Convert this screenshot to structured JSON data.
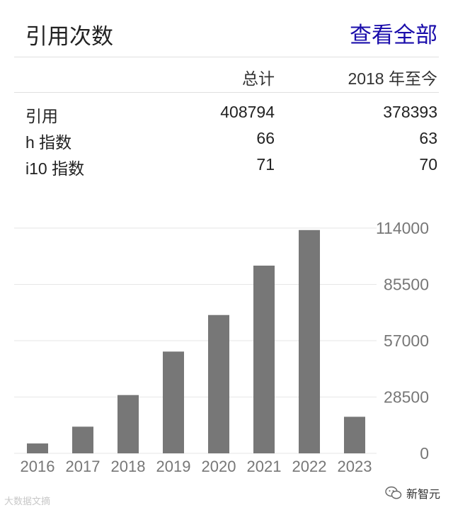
{
  "header": {
    "title": "引用次数",
    "view_all": "查看全部"
  },
  "stats": {
    "columns": [
      "总计",
      "2018 年至今"
    ],
    "rows": [
      {
        "label": "引用",
        "total": "408794",
        "since": "378393"
      },
      {
        "label": "h 指数",
        "total": "66",
        "since": "63"
      },
      {
        "label": "i10 指数",
        "total": "71",
        "since": "70"
      }
    ]
  },
  "chart_data": {
    "type": "bar",
    "categories": [
      "2016",
      "2017",
      "2018",
      "2019",
      "2020",
      "2021",
      "2022",
      "2023"
    ],
    "values": [
      5000,
      13500,
      29500,
      51500,
      70000,
      95000,
      113000,
      18500
    ],
    "ylim": [
      0,
      114000
    ],
    "yticks": [
      "0",
      "28500",
      "57000",
      "85500",
      "114000"
    ],
    "ytick_values": [
      0,
      28500,
      57000,
      85500,
      114000
    ],
    "bar_color": "#777777",
    "grid": true,
    "yaxis_position": "right"
  },
  "footer": {
    "brand": "新智元",
    "watermark": "大数据文摘"
  }
}
